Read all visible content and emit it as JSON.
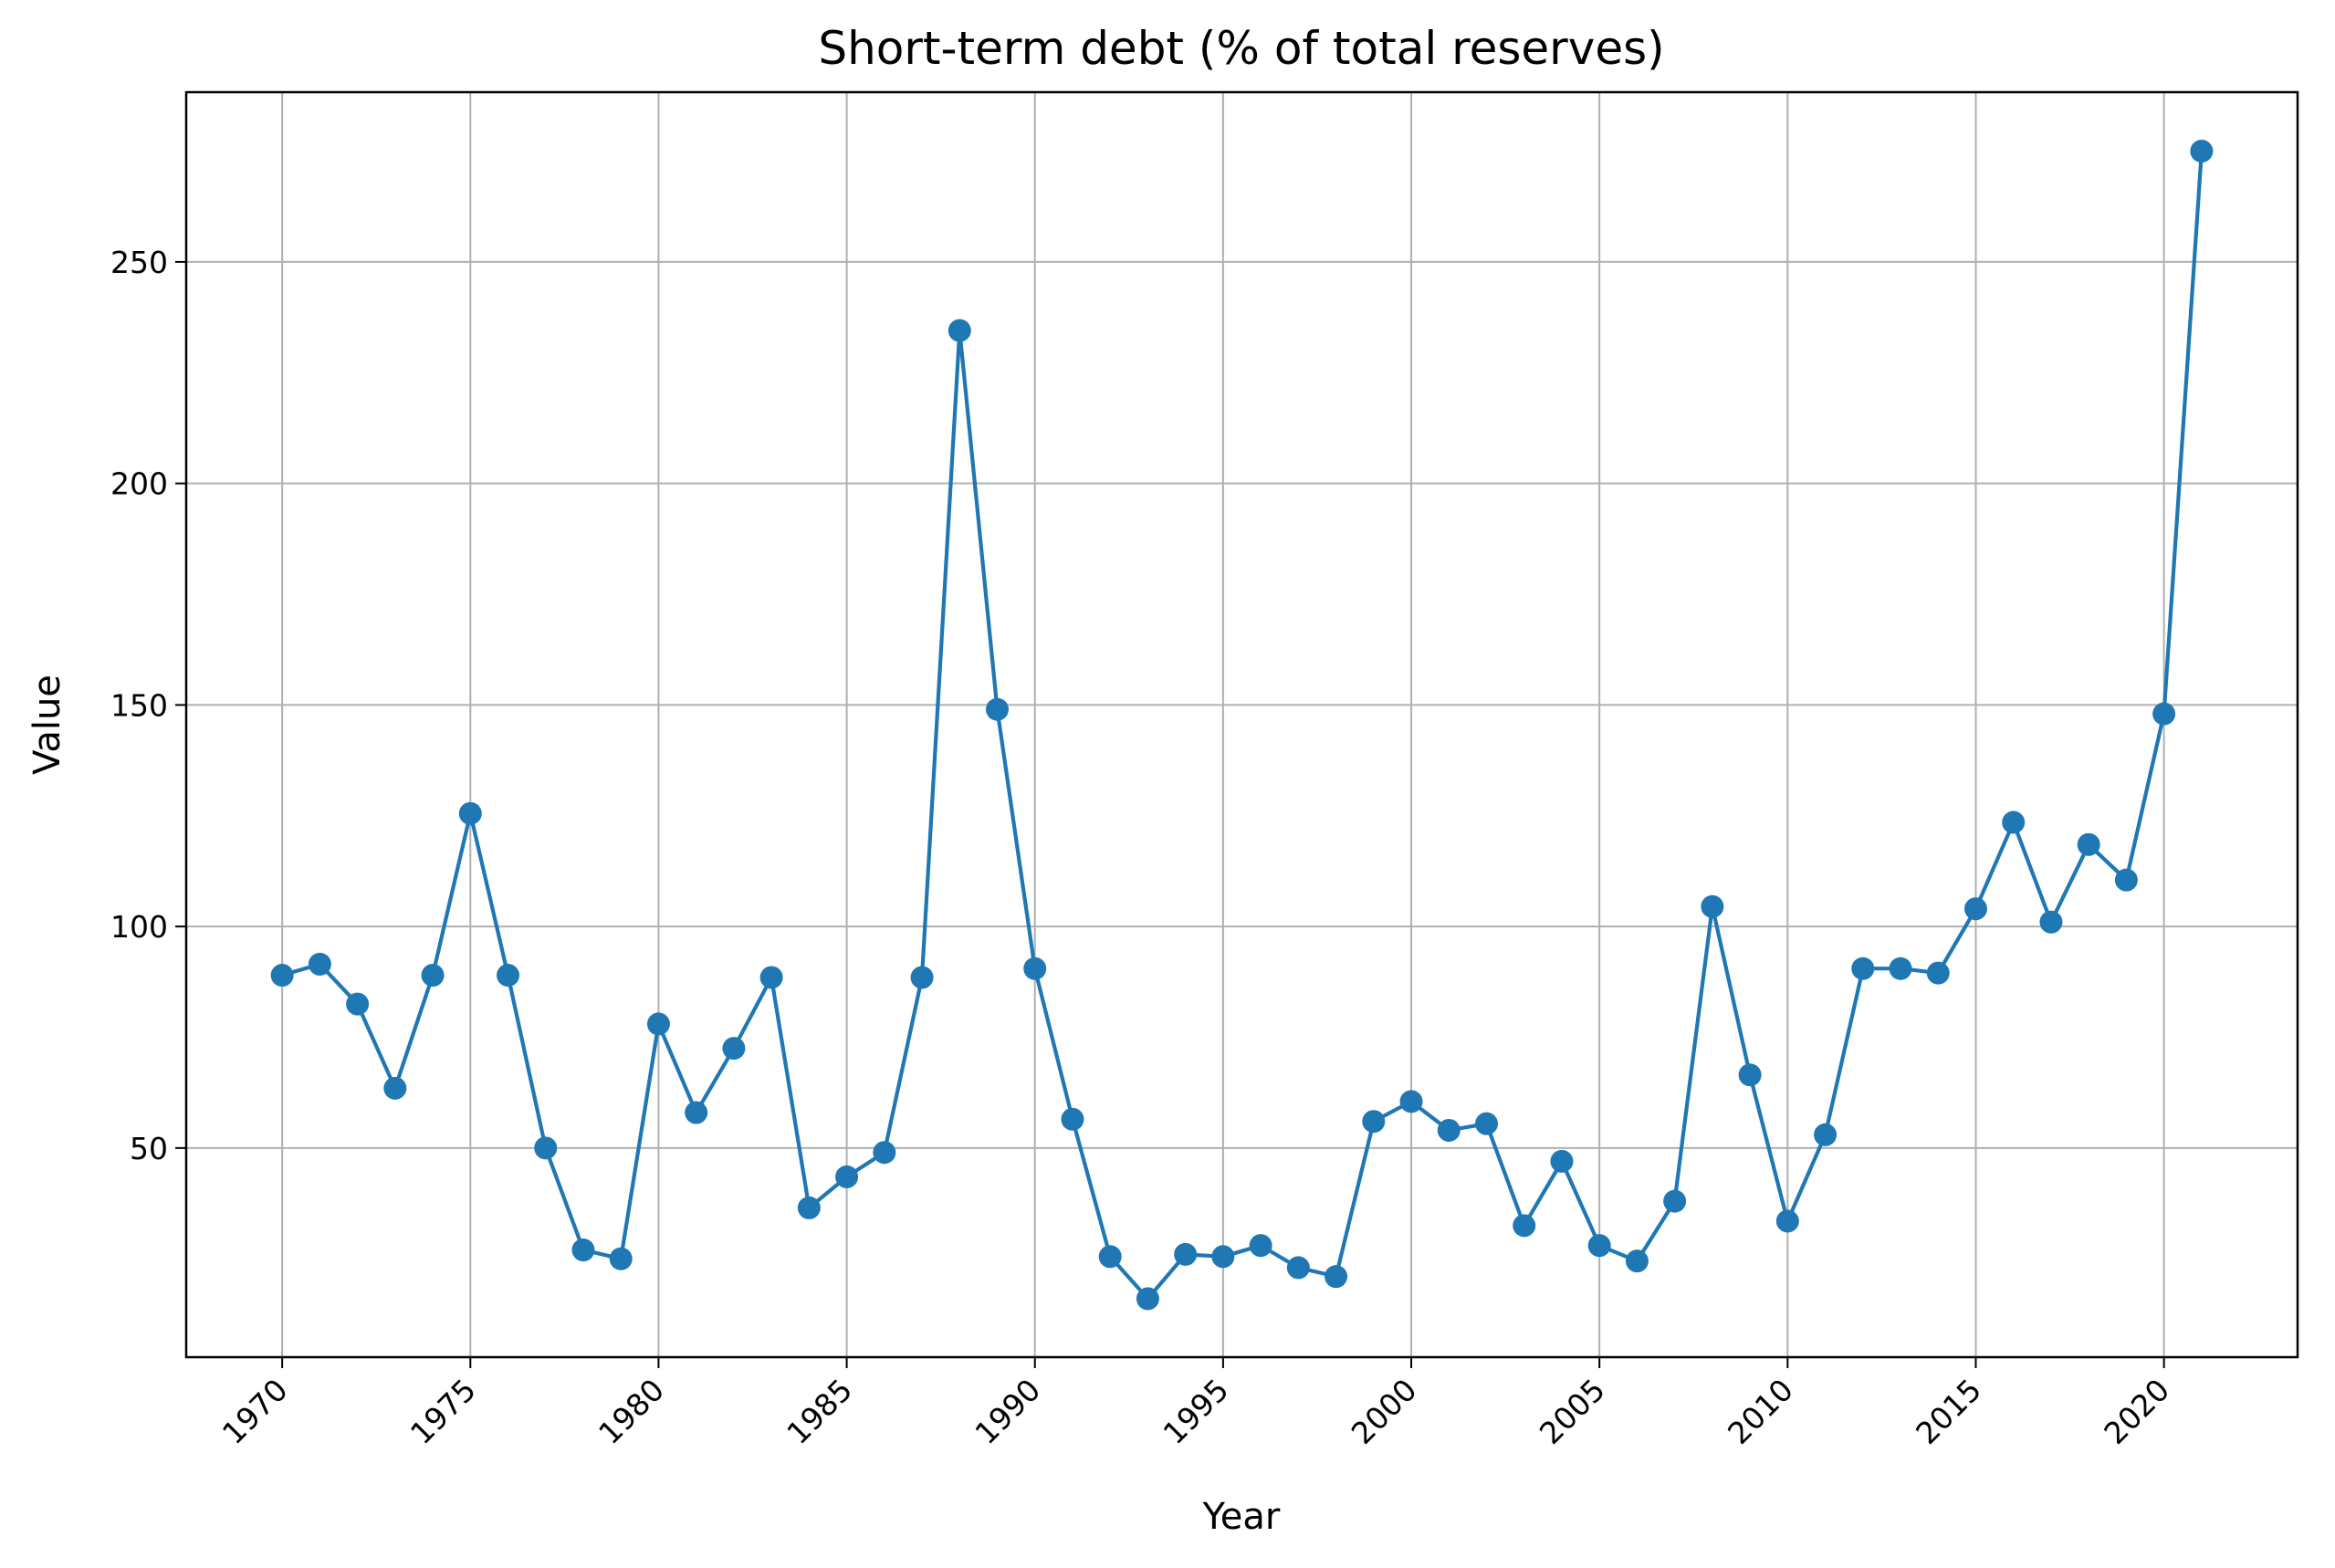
{
  "chart_data": {
    "type": "line",
    "title": "Short-term debt (% of total reserves)",
    "xlabel": "Year",
    "ylabel": "Value",
    "xlim": [
      1967.45,
      2023.55
    ],
    "ylim": [
      2.8,
      288.3
    ],
    "xticks": [
      1970,
      1975,
      1980,
      1985,
      1990,
      1995,
      2000,
      2005,
      2010,
      2015,
      2020
    ],
    "yticks": [
      50,
      100,
      150,
      200,
      250
    ],
    "grid": true,
    "line_color": "#1f77b4",
    "marker": "circle",
    "x": [
      1970,
      1971,
      1972,
      1973,
      1974,
      1975,
      1976,
      1977,
      1978,
      1979,
      1980,
      1981,
      1982,
      1983,
      1984,
      1985,
      1986,
      1987,
      1988,
      1989,
      1990,
      1991,
      1992,
      1993,
      1994,
      1995,
      1996,
      1997,
      1998,
      1999,
      2000,
      2001,
      2002,
      2003,
      2004,
      2005,
      2006,
      2007,
      2008,
      2009,
      2010,
      2011,
      2012,
      2013,
      2014,
      2015,
      2016,
      2017,
      2018,
      2019,
      2020,
      2021
    ],
    "series": [
      {
        "values": [
          89,
          91.5,
          82.5,
          63.5,
          89,
          125.5,
          89,
          50,
          27,
          25,
          78,
          58,
          72.5,
          88.5,
          36.5,
          43.5,
          49,
          88.5,
          234.5,
          149,
          90.5,
          56.5,
          25.5,
          16,
          26,
          25.5,
          28,
          23,
          21,
          56,
          60.5,
          54,
          55.5,
          32.5,
          47,
          28,
          24.5,
          38,
          104.5,
          66.5,
          33.5,
          53,
          90.5,
          90.5,
          89.5,
          104,
          123.5,
          101,
          118.5,
          110.5,
          148,
          275
        ]
      }
    ]
  }
}
